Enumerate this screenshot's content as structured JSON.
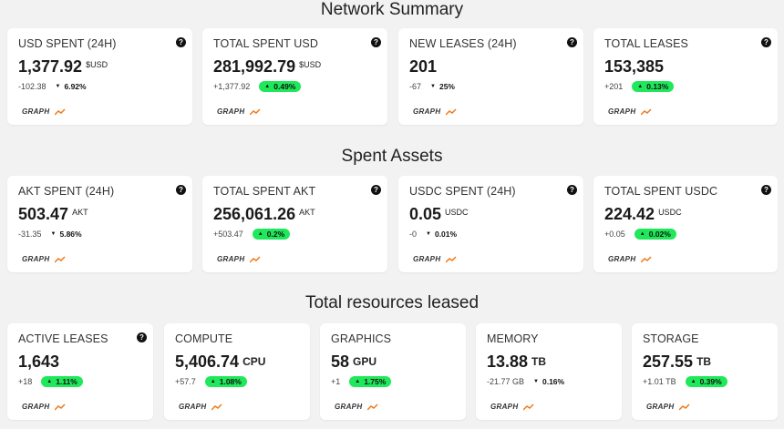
{
  "sections": [
    {
      "title": "Network Summary",
      "cards": [
        {
          "title": "USD SPENT (24H)",
          "value": "1,377.92",
          "unit": "$USD",
          "change": "-102.38",
          "percent": "6.92%",
          "direction": "down",
          "graph_label": "GRAPH"
        },
        {
          "title": "TOTAL SPENT USD",
          "value": "281,992.79",
          "unit": "$USD",
          "change": "+1,377.92",
          "percent": "0.49%",
          "direction": "up",
          "graph_label": "GRAPH"
        },
        {
          "title": "NEW LEASES (24H)",
          "value": "201",
          "unit": "",
          "change": "-67",
          "percent": "25%",
          "direction": "down",
          "graph_label": "GRAPH"
        },
        {
          "title": "TOTAL LEASES",
          "value": "153,385",
          "unit": "",
          "change": "+201",
          "percent": "0.13%",
          "direction": "up",
          "graph_label": "GRAPH"
        }
      ]
    },
    {
      "title": "Spent Assets",
      "cards": [
        {
          "title": "AKT SPENT (24H)",
          "value": "503.47",
          "unit": "AKT",
          "change": "-31.35",
          "percent": "5.86%",
          "direction": "down",
          "graph_label": "GRAPH"
        },
        {
          "title": "TOTAL SPENT AKT",
          "value": "256,061.26",
          "unit": "AKT",
          "change": "+503.47",
          "percent": "0.2%",
          "direction": "up",
          "graph_label": "GRAPH"
        },
        {
          "title": "USDC SPENT (24H)",
          "value": "0.05",
          "unit": "USDC",
          "change": "-0",
          "percent": "0.01%",
          "direction": "down",
          "graph_label": "GRAPH"
        },
        {
          "title": "TOTAL SPENT USDC",
          "value": "224.42",
          "unit": "USDC",
          "change": "+0.05",
          "percent": "0.02%",
          "direction": "up",
          "graph_label": "GRAPH"
        }
      ]
    },
    {
      "title": "Total resources leased",
      "cards": [
        {
          "title": "ACTIVE LEASES",
          "value": "1,643",
          "unit": "",
          "change": "+18",
          "percent": "1.11%",
          "direction": "up",
          "graph_label": "GRAPH",
          "help": true
        },
        {
          "title": "COMPUTE",
          "value": "5,406.74",
          "unit": "CPU",
          "change": "+57.7",
          "percent": "1.08%",
          "direction": "up",
          "graph_label": "GRAPH"
        },
        {
          "title": "GRAPHICS",
          "value": "58",
          "unit": "GPU",
          "change": "+1",
          "percent": "1.75%",
          "direction": "up",
          "graph_label": "GRAPH"
        },
        {
          "title": "MEMORY",
          "value": "13.88",
          "unit": "TB",
          "change": "-21.77 GB",
          "percent": "0.16%",
          "direction": "down",
          "graph_label": "GRAPH"
        },
        {
          "title": "STORAGE",
          "value": "257.55",
          "unit": "TB",
          "change": "+1.01 TB",
          "percent": "0.39%",
          "direction": "up",
          "graph_label": "GRAPH"
        }
      ]
    }
  ],
  "colors": {
    "up_pill": "#1fe85a",
    "trend_icon": "#f07a1a",
    "background": "#f2f2f2"
  },
  "icons": {
    "help": "question-mark-circle",
    "trend": "trending-up"
  }
}
